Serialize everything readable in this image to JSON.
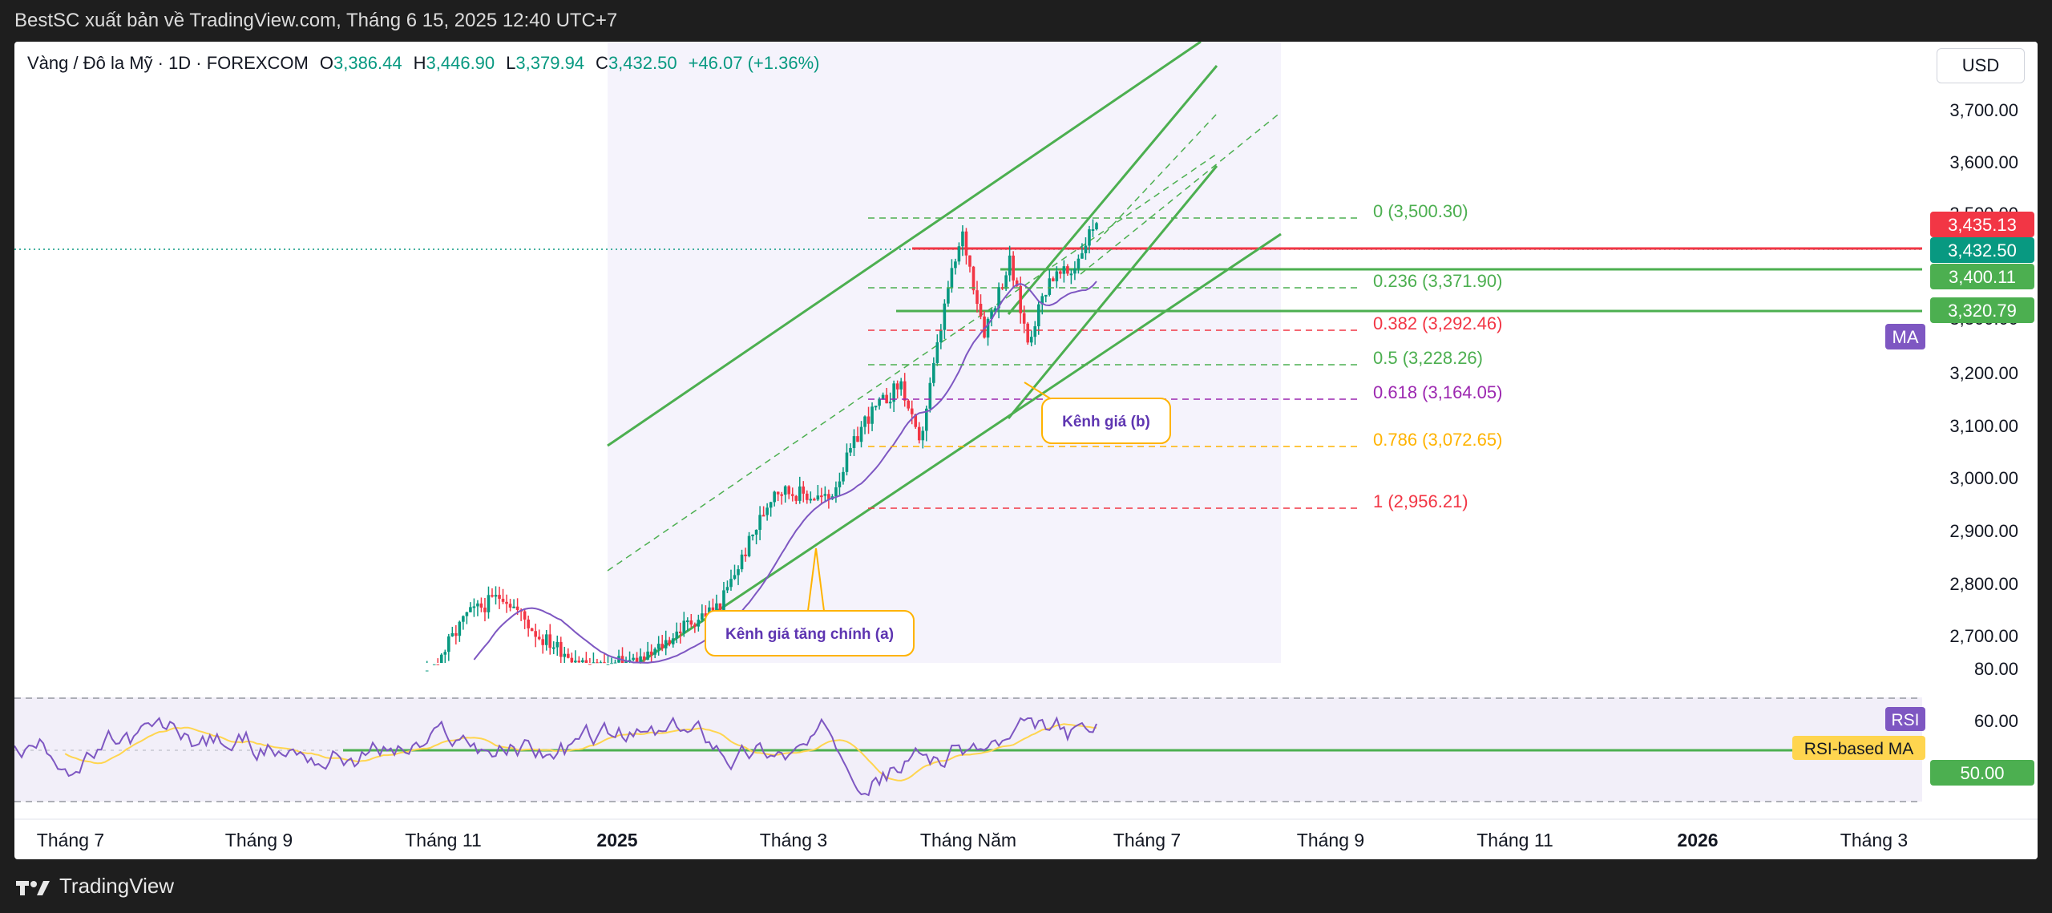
{
  "header": {
    "title": "BestSC xuất bản về TradingView.com, Tháng 6 15, 2025 12:40 UTC+7"
  },
  "legend": {
    "symbol": "Vàng / Đô la Mỹ · 1D · FOREXCOM",
    "open_label": "O",
    "open": "3,386.44",
    "high_label": "H",
    "high": "3,446.90",
    "low_label": "L",
    "low": "3,379.94",
    "close_label": "C",
    "close": "3,432.50",
    "change": "+46.07 (+1.36%)"
  },
  "currency_button": "USD",
  "price_axis": {
    "labels": [
      "3,700.00",
      "3,600.00",
      "3,500.00",
      "3,300.00",
      "3,200.00",
      "3,100.00",
      "3,000.00",
      "2,900.00",
      "2,800.00",
      "2,700.00"
    ]
  },
  "price_badges": {
    "p1": "3,435.13",
    "p2": "3,432.50",
    "p3": "3,400.11",
    "p4": "3,320.79",
    "ma": "MA"
  },
  "fib_levels": [
    {
      "label": "0 (3,500.30)",
      "color": "#4caf50"
    },
    {
      "label": "0.236 (3,371.90)",
      "color": "#4caf50"
    },
    {
      "label": "0.382 (3,292.46)",
      "color": "#f23645"
    },
    {
      "label": "0.5 (3,228.26)",
      "color": "#4caf50"
    },
    {
      "label": "0.618 (3,164.05)",
      "color": "#9c27b0"
    },
    {
      "label": "0.786 (3,072.65)",
      "color": "#ffb300"
    },
    {
      "label": "1 (2,956.21)",
      "color": "#f23645"
    }
  ],
  "annotations": {
    "channel_main": "Kênh giá tăng chính (a)",
    "channel_b": "Kênh giá (b)"
  },
  "rsi": {
    "axis": [
      "80.00",
      "60.00"
    ],
    "rsi_badge": "RSI",
    "rsi_ma_badge": "RSI-based MA",
    "level_badge": "50.00"
  },
  "time_axis": {
    "labels": [
      "Tháng 7",
      "Tháng 9",
      "Tháng 11",
      "2025",
      "Tháng 3",
      "Tháng Năm",
      "Tháng 7",
      "Tháng 9",
      "Tháng 11",
      "2026",
      "Tháng 3"
    ]
  },
  "footer": {
    "brand": "TradingView"
  },
  "colors": {
    "up": "#089981",
    "down": "#f23645",
    "channel": "#4caf50",
    "ma": "#7e57c2",
    "rsi": "#7e57c2",
    "rsi_ma": "#ffd54f"
  }
}
